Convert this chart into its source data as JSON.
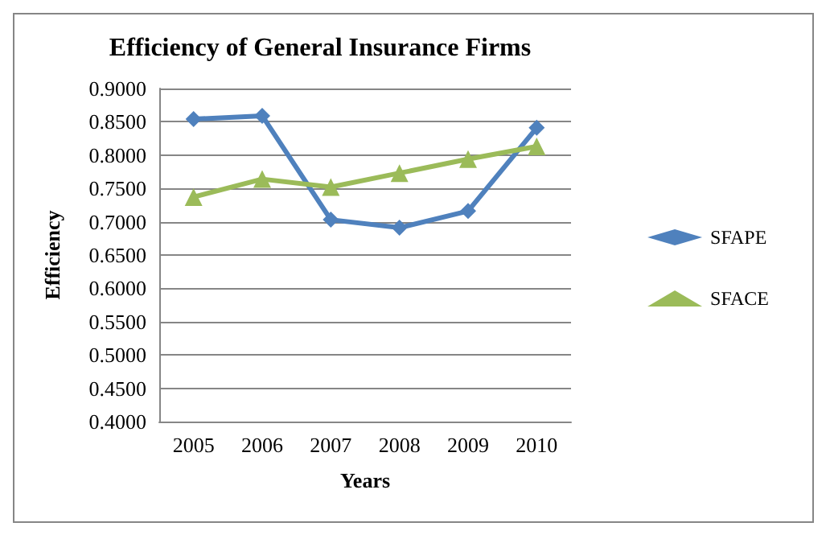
{
  "chart_data": {
    "type": "line",
    "title": "Efficiency of General Insurance Firms",
    "xlabel": "Years",
    "ylabel": "Efficiency",
    "categories": [
      "2005",
      "2006",
      "2007",
      "2008",
      "2009",
      "2010"
    ],
    "series": [
      {
        "name": "SFAPE",
        "color": "#4f81bd",
        "marker": "diamond",
        "values": [
          0.854,
          0.859,
          0.703,
          0.691,
          0.716,
          0.841
        ]
      },
      {
        "name": "SFACE",
        "color": "#9bbb59",
        "marker": "triangle",
        "values": [
          0.737,
          0.764,
          0.752,
          0.773,
          0.794,
          0.813
        ]
      }
    ],
    "ylim": [
      0.4,
      0.9
    ],
    "yticks": [
      {
        "value": 0.4,
        "label": "0.4000"
      },
      {
        "value": 0.45,
        "label": "0.4500"
      },
      {
        "value": 0.5,
        "label": "0.5000"
      },
      {
        "value": 0.55,
        "label": "0.5500"
      },
      {
        "value": 0.6,
        "label": "0.6000"
      },
      {
        "value": 0.65,
        "label": "0.6500"
      },
      {
        "value": 0.7,
        "label": "0.7000"
      },
      {
        "value": 0.75,
        "label": "0.7500"
      },
      {
        "value": 0.8,
        "label": "0.8000"
      },
      {
        "value": 0.85,
        "label": "0.8500"
      },
      {
        "value": 0.9,
        "label": "0.9000"
      }
    ],
    "grid": "y",
    "legend": "right",
    "line_style": "solid"
  }
}
